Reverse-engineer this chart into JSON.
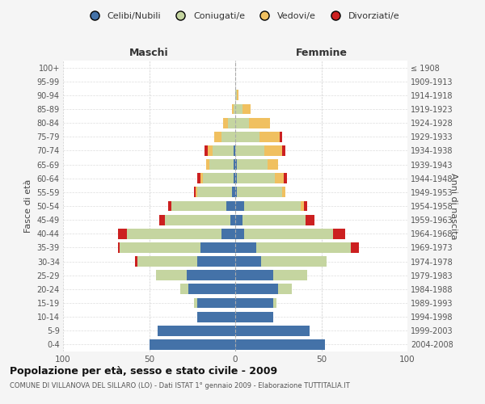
{
  "age_groups": [
    "0-4",
    "5-9",
    "10-14",
    "15-19",
    "20-24",
    "25-29",
    "30-34",
    "35-39",
    "40-44",
    "45-49",
    "50-54",
    "55-59",
    "60-64",
    "65-69",
    "70-74",
    "75-79",
    "80-84",
    "85-89",
    "90-94",
    "95-99",
    "100+"
  ],
  "birth_years": [
    "2004-2008",
    "1999-2003",
    "1994-1998",
    "1989-1993",
    "1984-1988",
    "1979-1983",
    "1974-1978",
    "1969-1973",
    "1964-1968",
    "1959-1963",
    "1954-1958",
    "1949-1953",
    "1944-1948",
    "1939-1943",
    "1934-1938",
    "1929-1933",
    "1924-1928",
    "1919-1923",
    "1914-1918",
    "1909-1913",
    "≤ 1908"
  ],
  "colors": {
    "celibi": "#4472a8",
    "coniugati": "#c5d5a0",
    "vedovi": "#f0c060",
    "divorziati": "#cc2020"
  },
  "maschi": {
    "celibi": [
      50,
      45,
      22,
      22,
      27,
      28,
      22,
      20,
      8,
      3,
      5,
      2,
      1,
      1,
      1,
      0,
      0,
      0,
      0,
      0,
      0
    ],
    "coniugati": [
      0,
      0,
      0,
      2,
      5,
      18,
      35,
      47,
      55,
      38,
      32,
      20,
      18,
      14,
      12,
      8,
      4,
      1,
      0,
      0,
      0
    ],
    "vedovi": [
      0,
      0,
      0,
      0,
      0,
      0,
      0,
      0,
      0,
      0,
      0,
      1,
      1,
      2,
      3,
      4,
      3,
      1,
      0,
      0,
      0
    ],
    "divorziati": [
      0,
      0,
      0,
      0,
      0,
      0,
      1,
      1,
      5,
      3,
      2,
      1,
      2,
      0,
      2,
      0,
      0,
      0,
      0,
      0,
      0
    ]
  },
  "femmine": {
    "celibi": [
      52,
      43,
      22,
      22,
      25,
      22,
      15,
      12,
      5,
      4,
      5,
      1,
      1,
      1,
      0,
      0,
      0,
      0,
      0,
      0,
      0
    ],
    "coniugati": [
      0,
      0,
      0,
      2,
      8,
      20,
      38,
      55,
      52,
      37,
      33,
      26,
      22,
      18,
      17,
      14,
      8,
      4,
      1,
      0,
      0
    ],
    "vedovi": [
      0,
      0,
      0,
      0,
      0,
      0,
      0,
      0,
      0,
      0,
      2,
      2,
      5,
      6,
      10,
      12,
      12,
      5,
      1,
      0,
      0
    ],
    "divorziati": [
      0,
      0,
      0,
      0,
      0,
      0,
      0,
      5,
      7,
      5,
      2,
      0,
      2,
      0,
      2,
      1,
      0,
      0,
      0,
      0,
      0
    ]
  },
  "title": "Popolazione per età, sesso e stato civile - 2009",
  "subtitle": "COMUNE DI VILLANOVA DEL SILLARO (LO) - Dati ISTAT 1° gennaio 2009 - Elaborazione TUTTITALIA.IT",
  "xlabel_left": "Maschi",
  "xlabel_right": "Femmine",
  "ylabel_left": "Fasce di età",
  "ylabel_right": "Anni di nascita",
  "xlim": 100,
  "legend_labels": [
    "Celibi/Nubili",
    "Coniugati/e",
    "Vedovi/e",
    "Divorziati/e"
  ],
  "bg_color": "#f5f5f5",
  "plot_bg_color": "#ffffff"
}
